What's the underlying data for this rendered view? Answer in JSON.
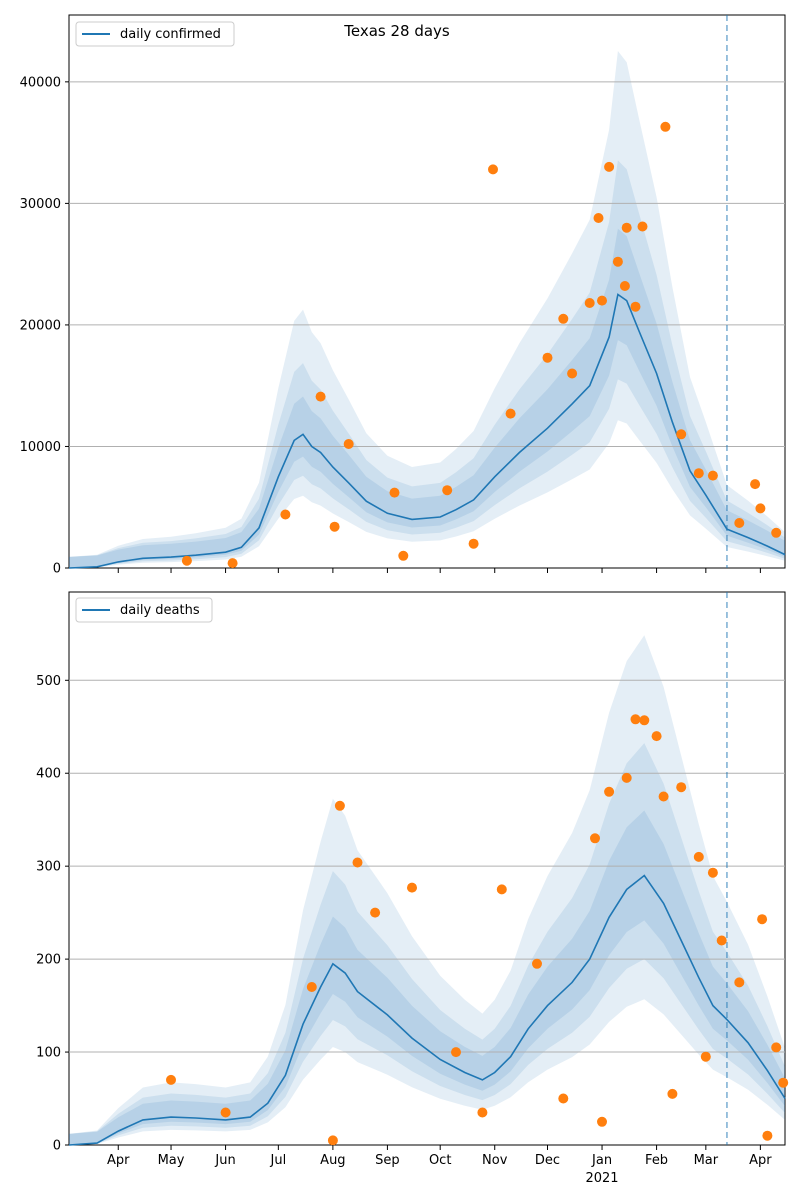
{
  "chart_data": [
    {
      "type": "line",
      "title": "Texas 28 days",
      "legend": "daily confirmed",
      "legend_position": "top-left",
      "xlabel": "",
      "ylabel": "",
      "ylim": [
        0,
        45500
      ],
      "yticks": [
        0,
        10000,
        20000,
        30000,
        40000
      ],
      "grid": "horizontal",
      "x_ticks": [
        "Apr",
        "May",
        "Jun",
        "Jul",
        "Aug",
        "Sep",
        "Oct",
        "Nov",
        "Dec",
        "Jan",
        "Feb",
        "Mar",
        "Apr"
      ],
      "x_year_label": "2021",
      "x_start": "2020-03-04",
      "x_end": "2021-04-15",
      "vline_date": "2021-03-13",
      "colors": {
        "line": "#1f77b4",
        "points": "#ff7f0e",
        "band": "#1f77b4"
      },
      "series": [
        {
          "name": "daily confirmed",
          "kind": "model-median",
          "points": [
            [
              "2020-03-04",
              0
            ],
            [
              "2020-03-20",
              100
            ],
            [
              "2020-04-01",
              500
            ],
            [
              "2020-04-15",
              800
            ],
            [
              "2020-05-01",
              900
            ],
            [
              "2020-05-15",
              1050
            ],
            [
              "2020-06-01",
              1300
            ],
            [
              "2020-06-10",
              1700
            ],
            [
              "2020-06-20",
              3300
            ],
            [
              "2020-07-01",
              7500
            ],
            [
              "2020-07-10",
              10500
            ],
            [
              "2020-07-15",
              11000
            ],
            [
              "2020-07-20",
              10000
            ],
            [
              "2020-07-25",
              9500
            ],
            [
              "2020-08-01",
              8300
            ],
            [
              "2020-08-10",
              7000
            ],
            [
              "2020-08-20",
              5500
            ],
            [
              "2020-09-01",
              4500
            ],
            [
              "2020-09-15",
              4000
            ],
            [
              "2020-10-01",
              4200
            ],
            [
              "2020-10-10",
              4800
            ],
            [
              "2020-10-20",
              5600
            ],
            [
              "2020-11-01",
              7500
            ],
            [
              "2020-11-15",
              9500
            ],
            [
              "2020-12-01",
              11500
            ],
            [
              "2020-12-15",
              13500
            ],
            [
              "2020-12-25",
              15000
            ],
            [
              "2021-01-05",
              19000
            ],
            [
              "2021-01-10",
              22500
            ],
            [
              "2021-01-15",
              22000
            ],
            [
              "2021-01-22",
              19500
            ],
            [
              "2021-02-01",
              16000
            ],
            [
              "2021-02-10",
              12000
            ],
            [
              "2021-02-20",
              8000
            ],
            [
              "2021-03-01",
              6000
            ],
            [
              "2021-03-13",
              3200
            ],
            [
              "2021-03-25",
              2500
            ],
            [
              "2021-04-05",
              1800
            ],
            [
              "2021-04-15",
              1100
            ]
          ]
        },
        {
          "name": "observed",
          "kind": "daily-points",
          "points": [
            [
              "2021-02-06",
              36300
            ],
            [
              "2020-10-31",
              32800
            ],
            [
              "2021-01-05",
              33000
            ],
            [
              "2020-12-30",
              28800
            ],
            [
              "2021-01-24",
              28100
            ],
            [
              "2021-01-15",
              28000
            ],
            [
              "2021-01-14",
              23200
            ],
            [
              "2020-12-10",
              20500
            ],
            [
              "2020-12-15",
              16000
            ],
            [
              "2020-07-25",
              14100
            ],
            [
              "2020-08-10",
              10200
            ],
            [
              "2020-09-05",
              6200
            ],
            [
              "2020-10-05",
              6400
            ],
            [
              "2020-11-10",
              12700
            ],
            [
              "2020-12-01",
              17300
            ],
            [
              "2020-12-25",
              21800
            ],
            [
              "2021-01-01",
              22000
            ],
            [
              "2021-01-10",
              25200
            ],
            [
              "2021-01-20",
              21500
            ],
            [
              "2021-02-15",
              11000
            ],
            [
              "2021-02-25",
              7800
            ],
            [
              "2021-03-05",
              7600
            ],
            [
              "2021-03-20",
              3700
            ],
            [
              "2021-03-29",
              6900
            ],
            [
              "2021-04-01",
              4900
            ],
            [
              "2021-04-10",
              2900
            ],
            [
              "2020-07-05",
              4400
            ],
            [
              "2020-08-02",
              3400
            ],
            [
              "2020-09-10",
              1000
            ],
            [
              "2020-10-20",
              2000
            ],
            [
              "2020-06-05",
              400
            ],
            [
              "2020-05-10",
              600
            ]
          ]
        }
      ]
    },
    {
      "type": "line",
      "title": "",
      "legend": "daily deaths",
      "legend_position": "top-left",
      "xlabel": "",
      "ylabel": "",
      "ylim": [
        0,
        595
      ],
      "yticks": [
        0,
        100,
        200,
        300,
        400,
        500
      ],
      "grid": "horizontal",
      "x_ticks": [
        "Apr",
        "May",
        "Jun",
        "Jul",
        "Aug",
        "Sep",
        "Oct",
        "Nov",
        "Dec",
        "Jan",
        "Feb",
        "Mar",
        "Apr"
      ],
      "x_year_label": "2021",
      "x_start": "2020-03-04",
      "x_end": "2021-04-15",
      "vline_date": "2021-03-13",
      "colors": {
        "line": "#1f77b4",
        "points": "#ff7f0e",
        "band": "#1f77b4"
      },
      "series": [
        {
          "name": "daily deaths",
          "kind": "model-median",
          "points": [
            [
              "2020-03-04",
              0
            ],
            [
              "2020-03-20",
              2
            ],
            [
              "2020-04-01",
              15
            ],
            [
              "2020-04-15",
              27
            ],
            [
              "2020-05-01",
              30
            ],
            [
              "2020-05-15",
              29
            ],
            [
              "2020-06-01",
              27
            ],
            [
              "2020-06-15",
              30
            ],
            [
              "2020-06-25",
              45
            ],
            [
              "2020-07-05",
              75
            ],
            [
              "2020-07-15",
              130
            ],
            [
              "2020-07-25",
              170
            ],
            [
              "2020-08-01",
              195
            ],
            [
              "2020-08-08",
              185
            ],
            [
              "2020-08-15",
              165
            ],
            [
              "2020-09-01",
              140
            ],
            [
              "2020-09-15",
              115
            ],
            [
              "2020-10-01",
              92
            ],
            [
              "2020-10-15",
              78
            ],
            [
              "2020-10-25",
              70
            ],
            [
              "2020-11-01",
              78
            ],
            [
              "2020-11-10",
              95
            ],
            [
              "2020-11-20",
              125
            ],
            [
              "2020-12-01",
              150
            ],
            [
              "2020-12-15",
              175
            ],
            [
              "2020-12-25",
              200
            ],
            [
              "2021-01-05",
              245
            ],
            [
              "2021-01-15",
              275
            ],
            [
              "2021-01-25",
              290
            ],
            [
              "2021-02-05",
              260
            ],
            [
              "2021-02-15",
              220
            ],
            [
              "2021-02-25",
              180
            ],
            [
              "2021-03-05",
              150
            ],
            [
              "2021-03-13",
              135
            ],
            [
              "2021-03-25",
              110
            ],
            [
              "2021-04-05",
              80
            ],
            [
              "2021-04-15",
              50
            ]
          ]
        },
        {
          "name": "observed",
          "kind": "daily-points",
          "points": [
            [
              "2020-08-05",
              365
            ],
            [
              "2020-08-15",
              304
            ],
            [
              "2021-01-20",
              458
            ],
            [
              "2021-01-25",
              457
            ],
            [
              "2021-02-01",
              440
            ],
            [
              "2021-02-05",
              375
            ],
            [
              "2021-01-15",
              395
            ],
            [
              "2021-01-05",
              380
            ],
            [
              "2020-12-28",
              330
            ],
            [
              "2020-11-25",
              195
            ],
            [
              "2020-11-05",
              275
            ],
            [
              "2020-09-15",
              277
            ],
            [
              "2020-07-20",
              170
            ],
            [
              "2020-08-25",
              250
            ],
            [
              "2021-02-15",
              385
            ],
            [
              "2021-02-25",
              310
            ],
            [
              "2021-03-05",
              293
            ],
            [
              "2021-03-10",
              220
            ],
            [
              "2021-03-20",
              175
            ],
            [
              "2021-04-02",
              243
            ],
            [
              "2021-04-10",
              105
            ],
            [
              "2021-04-14",
              67
            ],
            [
              "2020-08-01",
              5
            ],
            [
              "2021-04-05",
              10
            ],
            [
              "2020-05-01",
              70
            ],
            [
              "2020-06-01",
              35
            ],
            [
              "2020-10-10",
              100
            ],
            [
              "2020-10-25",
              35
            ],
            [
              "2020-12-10",
              50
            ],
            [
              "2021-01-01",
              25
            ],
            [
              "2021-02-10",
              55
            ],
            [
              "2021-03-01",
              95
            ]
          ]
        }
      ]
    }
  ]
}
